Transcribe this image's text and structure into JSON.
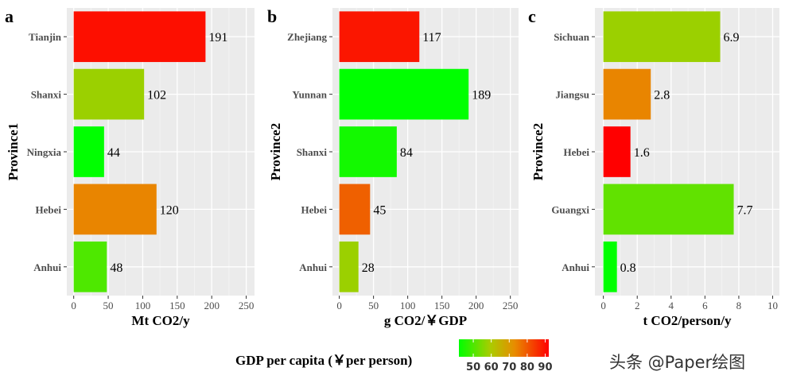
{
  "legend": {
    "title": "GDP per capita (￥per person)",
    "ticks": [
      50,
      60,
      70,
      80,
      90
    ],
    "range": [
      42,
      92
    ],
    "colors": [
      "#00ff00",
      "#ff0000"
    ]
  },
  "watermark": "头条 @Paper绘图",
  "chart_data": [
    {
      "type": "bar",
      "orientation": "horizontal",
      "panel_label": "a",
      "categories": [
        "Tianjin",
        "Shanxi",
        "Ningxia",
        "Hebei",
        "Anhui"
      ],
      "values": [
        191,
        102,
        44,
        120,
        48
      ],
      "value_labels": [
        "191",
        "102",
        "44",
        "120",
        "48"
      ],
      "gdp": [
        90,
        58,
        42,
        74,
        50
      ],
      "xlabel": "Mt CO2/y",
      "ylabel": "Province1",
      "xlim": [
        -10,
        262
      ],
      "xticks": [
        0,
        50,
        100,
        150,
        200,
        250
      ]
    },
    {
      "type": "bar",
      "orientation": "horizontal",
      "panel_label": "b",
      "categories": [
        "Zhejiang",
        "Yunnan",
        "Shanxi",
        "Hebei",
        "Anhui"
      ],
      "values": [
        117,
        189,
        84,
        45,
        28
      ],
      "value_labels": [
        "117",
        "189",
        "84",
        "45",
        "28"
      ],
      "gdp": [
        89,
        42,
        44,
        79,
        58
      ],
      "xlabel": "g CO2/￥GDP",
      "ylabel": "Province2",
      "xlim": [
        -10,
        262
      ],
      "xticks": [
        0,
        50,
        100,
        150,
        200,
        250
      ]
    },
    {
      "type": "bar",
      "orientation": "horizontal",
      "panel_label": "c",
      "categories": [
        "Sichuan",
        "Jiangsu",
        "Hebei",
        "Guangxi",
        "Anhui"
      ],
      "values": [
        6.9,
        2.8,
        1.6,
        7.7,
        0.8
      ],
      "value_labels": [
        "6.9",
        "2.8",
        "1.6",
        "7.7",
        "0.8"
      ],
      "gdp": [
        58,
        74,
        92,
        52,
        42
      ],
      "xlabel": "t CO2/person/y",
      "ylabel": "Province2",
      "xlim": [
        -0.5,
        10.4
      ],
      "xticks": [
        0,
        2,
        4,
        6,
        8,
        10
      ]
    }
  ]
}
